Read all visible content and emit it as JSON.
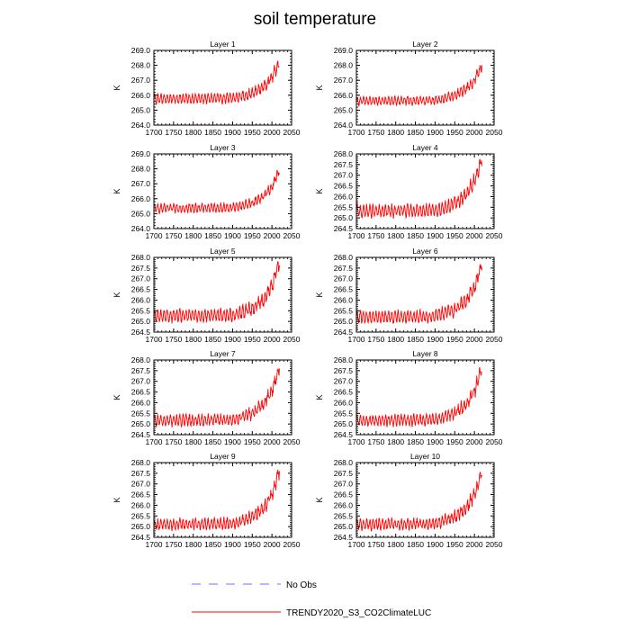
{
  "figure": {
    "title": "soil temperature",
    "colors": {
      "model_line": "#ff0000",
      "obs_line": "#6f6fff",
      "axis": "#000000"
    }
  },
  "legend": {
    "entries": [
      {
        "label": "No Obs",
        "color": "#6f6fff",
        "style": "dashed"
      },
      {
        "label": "TRENDY2020_S3_CO2ClimateLUC",
        "color": "#ff0000",
        "style": "solid"
      }
    ]
  },
  "chart_data": [
    {
      "type": "line",
      "title": "Layer 1",
      "xlabel": "",
      "ylabel": "K",
      "xlim": [
        1700,
        2050
      ],
      "ylim": [
        264.0,
        269.0
      ],
      "xticks": [
        "1700",
        "1750",
        "1800",
        "1850",
        "1900",
        "1950",
        "2000",
        "2050"
      ],
      "yticks": [
        "264.0",
        "265.0",
        "266.0",
        "267.0",
        "268.0",
        "269.0"
      ],
      "series": [
        {
          "name": "TRENDY2020_S3_CO2ClimateLUC",
          "start_year": 1700,
          "end_year": 2019,
          "baseline": 265.75,
          "amplitude": 0.3,
          "trend_points": [
            [
              1700,
              265.75
            ],
            [
              1900,
              265.8
            ],
            [
              1950,
              266.1
            ],
            [
              1980,
              266.6
            ],
            [
              2000,
              267.2
            ],
            [
              2019,
              268.2
            ]
          ]
        }
      ]
    },
    {
      "type": "line",
      "title": "Layer 2",
      "xlabel": "",
      "ylabel": "K",
      "xlim": [
        1700,
        2050
      ],
      "ylim": [
        264.0,
        269.0
      ],
      "xticks": [
        "1700",
        "1750",
        "1800",
        "1850",
        "1900",
        "1950",
        "2000",
        "2050"
      ],
      "yticks": [
        "264.0",
        "265.0",
        "266.0",
        "267.0",
        "268.0",
        "269.0"
      ],
      "series": [
        {
          "name": "TRENDY2020_S3_CO2ClimateLUC",
          "start_year": 1700,
          "end_year": 2019,
          "baseline": 265.6,
          "amplitude": 0.25,
          "trend_points": [
            [
              1700,
              265.6
            ],
            [
              1900,
              265.65
            ],
            [
              1950,
              265.95
            ],
            [
              1980,
              266.45
            ],
            [
              2000,
              267.0
            ],
            [
              2019,
              268.0
            ]
          ]
        }
      ]
    },
    {
      "type": "line",
      "title": "Layer 3",
      "xlabel": "",
      "ylabel": "K",
      "xlim": [
        1700,
        2050
      ],
      "ylim": [
        264.0,
        269.0
      ],
      "xticks": [
        "1700",
        "1750",
        "1800",
        "1850",
        "1900",
        "1950",
        "2000",
        "2050"
      ],
      "yticks": [
        "264.0",
        "265.0",
        "266.0",
        "267.0",
        "268.0",
        "269.0"
      ],
      "series": [
        {
          "name": "TRENDY2020_S3_CO2ClimateLUC",
          "start_year": 1700,
          "end_year": 2019,
          "baseline": 265.35,
          "amplitude": 0.25,
          "trend_points": [
            [
              1700,
              265.35
            ],
            [
              1900,
              265.4
            ],
            [
              1950,
              265.7
            ],
            [
              1980,
              266.2
            ],
            [
              2000,
              266.8
            ],
            [
              2019,
              267.9
            ]
          ]
        }
      ]
    },
    {
      "type": "line",
      "title": "Layer 4",
      "xlabel": "",
      "ylabel": "K",
      "xlim": [
        1700,
        2050
      ],
      "ylim": [
        264.5,
        268.0
      ],
      "xticks": [
        "1700",
        "1750",
        "1800",
        "1850",
        "1900",
        "1950",
        "2000",
        "2050"
      ],
      "yticks": [
        "264.5",
        "265.0",
        "265.5",
        "266.0",
        "266.5",
        "267.0",
        "267.5",
        "268.0"
      ],
      "series": [
        {
          "name": "TRENDY2020_S3_CO2ClimateLUC",
          "start_year": 1700,
          "end_year": 2019,
          "baseline": 265.3,
          "amplitude": 0.25,
          "trend_points": [
            [
              1700,
              265.3
            ],
            [
              1900,
              265.35
            ],
            [
              1950,
              265.65
            ],
            [
              1980,
              266.1
            ],
            [
              2000,
              266.7
            ],
            [
              2019,
              267.8
            ]
          ]
        }
      ]
    },
    {
      "type": "line",
      "title": "Layer 5",
      "xlabel": "",
      "ylabel": "K",
      "xlim": [
        1700,
        2050
      ],
      "ylim": [
        264.5,
        268.0
      ],
      "xticks": [
        "1700",
        "1750",
        "1800",
        "1850",
        "1900",
        "1950",
        "2000",
        "2050"
      ],
      "yticks": [
        "264.5",
        "265.0",
        "265.5",
        "266.0",
        "266.5",
        "267.0",
        "267.5",
        "268.0"
      ],
      "series": [
        {
          "name": "TRENDY2020_S3_CO2ClimateLUC",
          "start_year": 1700,
          "end_year": 2019,
          "baseline": 265.25,
          "amplitude": 0.25,
          "trend_points": [
            [
              1700,
              265.25
            ],
            [
              1900,
              265.3
            ],
            [
              1950,
              265.6
            ],
            [
              1980,
              266.05
            ],
            [
              2000,
              266.65
            ],
            [
              2019,
              267.75
            ]
          ]
        }
      ]
    },
    {
      "type": "line",
      "title": "Layer 6",
      "xlabel": "",
      "ylabel": "K",
      "xlim": [
        1700,
        2050
      ],
      "ylim": [
        264.5,
        268.0
      ],
      "xticks": [
        "1700",
        "1750",
        "1800",
        "1850",
        "1900",
        "1950",
        "2000",
        "2050"
      ],
      "yticks": [
        "264.5",
        "265.0",
        "265.5",
        "266.0",
        "266.5",
        "267.0",
        "267.5",
        "268.0"
      ],
      "series": [
        {
          "name": "TRENDY2020_S3_CO2ClimateLUC",
          "start_year": 1700,
          "end_year": 2019,
          "baseline": 265.2,
          "amplitude": 0.25,
          "trend_points": [
            [
              1700,
              265.2
            ],
            [
              1900,
              265.25
            ],
            [
              1950,
              265.55
            ],
            [
              1980,
              266.0
            ],
            [
              2000,
              266.6
            ],
            [
              2019,
              267.7
            ]
          ]
        }
      ]
    },
    {
      "type": "line",
      "title": "Layer 7",
      "xlabel": "",
      "ylabel": "K",
      "xlim": [
        1700,
        2050
      ],
      "ylim": [
        264.5,
        268.0
      ],
      "xticks": [
        "1700",
        "1750",
        "1800",
        "1850",
        "1900",
        "1950",
        "2000",
        "2050"
      ],
      "yticks": [
        "264.5",
        "265.0",
        "265.5",
        "266.0",
        "266.5",
        "267.0",
        "267.5",
        "268.0"
      ],
      "series": [
        {
          "name": "TRENDY2020_S3_CO2ClimateLUC",
          "start_year": 1700,
          "end_year": 2019,
          "baseline": 265.15,
          "amplitude": 0.22,
          "trend_points": [
            [
              1700,
              265.15
            ],
            [
              1900,
              265.2
            ],
            [
              1950,
              265.5
            ],
            [
              1980,
              265.95
            ],
            [
              2000,
              266.55
            ],
            [
              2019,
              267.65
            ]
          ]
        }
      ]
    },
    {
      "type": "line",
      "title": "Layer 8",
      "xlabel": "",
      "ylabel": "K",
      "xlim": [
        1700,
        2050
      ],
      "ylim": [
        264.5,
        268.0
      ],
      "xticks": [
        "1700",
        "1750",
        "1800",
        "1850",
        "1900",
        "1950",
        "2000",
        "2050"
      ],
      "yticks": [
        "264.5",
        "265.0",
        "265.5",
        "266.0",
        "266.5",
        "267.0",
        "267.5",
        "268.0"
      ],
      "series": [
        {
          "name": "TRENDY2020_S3_CO2ClimateLUC",
          "start_year": 1700,
          "end_year": 2019,
          "baseline": 265.15,
          "amplitude": 0.22,
          "trend_points": [
            [
              1700,
              265.15
            ],
            [
              1900,
              265.2
            ],
            [
              1950,
              265.5
            ],
            [
              1980,
              265.95
            ],
            [
              2000,
              266.55
            ],
            [
              2019,
              267.65
            ]
          ]
        }
      ]
    },
    {
      "type": "line",
      "title": "Layer 9",
      "xlabel": "",
      "ylabel": "K",
      "xlim": [
        1700,
        2050
      ],
      "ylim": [
        264.5,
        268.0
      ],
      "xticks": [
        "1700",
        "1750",
        "1800",
        "1850",
        "1900",
        "1950",
        "2000",
        "2050"
      ],
      "yticks": [
        "264.5",
        "265.0",
        "265.5",
        "266.0",
        "266.5",
        "267.0",
        "267.5",
        "268.0"
      ],
      "series": [
        {
          "name": "TRENDY2020_S3_CO2ClimateLUC",
          "start_year": 1700,
          "end_year": 2019,
          "baseline": 265.1,
          "amplitude": 0.22,
          "trend_points": [
            [
              1700,
              265.1
            ],
            [
              1900,
              265.15
            ],
            [
              1950,
              265.45
            ],
            [
              1980,
              265.9
            ],
            [
              2000,
              266.5
            ],
            [
              2019,
              267.6
            ]
          ]
        }
      ]
    },
    {
      "type": "line",
      "title": "Layer 10",
      "xlabel": "",
      "ylabel": "K",
      "xlim": [
        1700,
        2050
      ],
      "ylim": [
        264.5,
        268.0
      ],
      "xticks": [
        "1700",
        "1750",
        "1800",
        "1850",
        "1900",
        "1950",
        "2000",
        "2050"
      ],
      "yticks": [
        "264.5",
        "265.0",
        "265.5",
        "266.0",
        "266.5",
        "267.0",
        "267.5",
        "268.0"
      ],
      "series": [
        {
          "name": "TRENDY2020_S3_CO2ClimateLUC",
          "start_year": 1700,
          "end_year": 2019,
          "baseline": 265.1,
          "amplitude": 0.22,
          "trend_points": [
            [
              1700,
              265.1
            ],
            [
              1900,
              265.15
            ],
            [
              1950,
              265.45
            ],
            [
              1980,
              265.9
            ],
            [
              2000,
              266.5
            ],
            [
              2019,
              267.6
            ]
          ]
        }
      ]
    }
  ]
}
